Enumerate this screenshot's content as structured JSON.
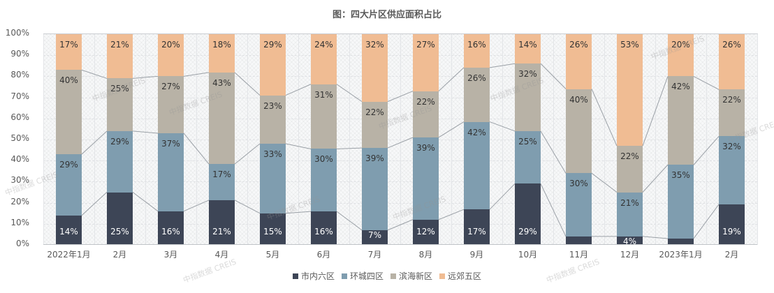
{
  "title": "图：四大片区供应面积占比",
  "watermark": "中指数据 CREIS",
  "chart_data": {
    "type": "bar",
    "stacked": true,
    "percent": true,
    "title": "图：四大片区供应面积占比",
    "xlabel": "",
    "ylabel": "",
    "ylim": [
      0,
      100
    ],
    "yticks": [
      "0%",
      "10%",
      "20%",
      "30%",
      "40%",
      "50%",
      "60%",
      "70%",
      "80%",
      "90%",
      "100%"
    ],
    "grid": true,
    "legend_position": "bottom",
    "categories": [
      "2022年1月",
      "2月",
      "3月",
      "4月",
      "5月",
      "6月",
      "7月",
      "8月",
      "9月",
      "10月",
      "11月",
      "12月",
      "2023年1月",
      "2月"
    ],
    "series": [
      {
        "name": "市内六区",
        "color": "#3d4556",
        "values": [
          14,
          25,
          16,
          21,
          15,
          16,
          7,
          12,
          17,
          29,
          4,
          4,
          3,
          19
        ],
        "labels": [
          "14%",
          "25%",
          "16%",
          "21%",
          "15%",
          "16%",
          "7%",
          "12%",
          "17%",
          "29%",
          "",
          "4%",
          "3%",
          "19%"
        ]
      },
      {
        "name": "环城四区",
        "color": "#7f9daf",
        "values": [
          29,
          29,
          37,
          17,
          33,
          30,
          39,
          39,
          42,
          25,
          30,
          21,
          35,
          32
        ],
        "labels": [
          "29%",
          "29%",
          "37%",
          "17%",
          "33%",
          "30%",
          "39%",
          "39%",
          "42%",
          "25%",
          "30%",
          "21%",
          "35%",
          "32%"
        ]
      },
      {
        "name": "滨海新区",
        "color": "#b8b2a6",
        "values": [
          40,
          25,
          27,
          43,
          23,
          31,
          22,
          22,
          26,
          32,
          40,
          22,
          42,
          22
        ],
        "labels": [
          "40%",
          "25%",
          "27%",
          "43%",
          "23%",
          "31%",
          "22%",
          "22%",
          "26%",
          "32%",
          "40%",
          "22%",
          "42%",
          "22%"
        ]
      },
      {
        "name": "远郊五区",
        "color": "#f0bc93",
        "values": [
          17,
          21,
          20,
          18,
          29,
          24,
          32,
          27,
          16,
          14,
          26,
          53,
          20,
          26
        ],
        "labels": [
          "17%",
          "21%",
          "20%",
          "18%",
          "29%",
          "24%",
          "32%",
          "27%",
          "16%",
          "14%",
          "26%",
          "53%",
          "20%",
          "26%"
        ]
      }
    ]
  }
}
